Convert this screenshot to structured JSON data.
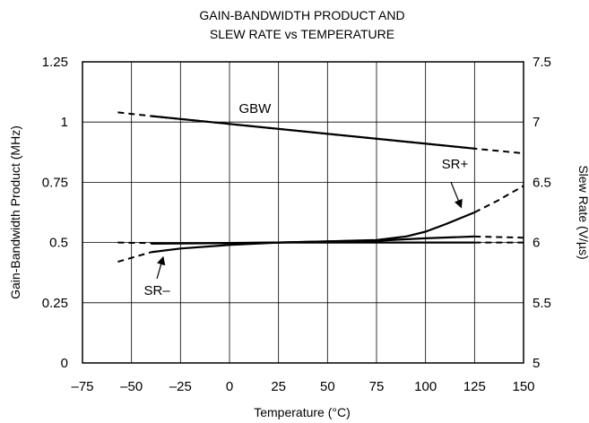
{
  "chart_data": {
    "type": "line",
    "title": "GAIN-BANDWIDTH PRODUCT AND",
    "subtitle": "SLEW RATE vs TEMPERATURE",
    "xlabel": "Temperature (°C)",
    "ylabel_left": "Gain-Bandwidth Product (MHz)",
    "ylabel_right": "Slew Rate (V/µs)",
    "xlim": [
      -75,
      150
    ],
    "ylim_left": [
      0,
      1.25
    ],
    "ylim_right": [
      5,
      7.5
    ],
    "x_ticks": [
      "–75",
      "–50",
      "–25",
      "0",
      "25",
      "50",
      "75",
      "100",
      "125",
      "150"
    ],
    "y_ticks_left": [
      "0",
      "0.25",
      "0.5",
      "0.75",
      "1",
      "1.25"
    ],
    "y_ticks_right": [
      "5",
      "5.5",
      "6",
      "6.5",
      "7",
      "7.5"
    ],
    "grid": true,
    "series": [
      {
        "name": "GBW",
        "axis": "left",
        "solid": [
          [
            -40,
            1.025
          ],
          [
            125,
            0.89
          ]
        ],
        "dashed": [
          [
            -57,
            1.04
          ],
          [
            -40,
            1.025
          ],
          [
            125,
            0.89
          ],
          [
            150,
            0.87
          ]
        ]
      },
      {
        "name": "SR+",
        "axis": "right",
        "solid": [
          [
            -40,
            5.99
          ],
          [
            0,
            5.995
          ],
          [
            25,
            6.0
          ],
          [
            50,
            6.01
          ],
          [
            75,
            6.02
          ],
          [
            90,
            6.05
          ],
          [
            100,
            6.09
          ],
          [
            110,
            6.15
          ],
          [
            125,
            6.25
          ]
        ],
        "dashed": [
          [
            125,
            6.25
          ],
          [
            137,
            6.35
          ],
          [
            150,
            6.47
          ]
        ]
      },
      {
        "name": "SR–",
        "axis": "right",
        "solid": [
          [
            -40,
            5.92
          ],
          [
            -25,
            5.95
          ],
          [
            0,
            5.98
          ],
          [
            25,
            6.0
          ],
          [
            50,
            6.01
          ],
          [
            75,
            6.015
          ],
          [
            100,
            6.035
          ],
          [
            125,
            6.05
          ]
        ],
        "dashed_start": [
          [
            -57,
            5.84
          ],
          [
            -40,
            5.92
          ]
        ],
        "dashed_end": [
          [
            125,
            6.05
          ],
          [
            150,
            6.04
          ]
        ]
      },
      {
        "name": "",
        "axis": "right",
        "solid": [
          [
            -40,
            5.995
          ],
          [
            -15,
            5.995
          ],
          [
            25,
            6.0
          ],
          [
            75,
            6.0
          ],
          [
            125,
            6.0
          ]
        ],
        "dashed_start": [
          [
            -57,
            6.0
          ],
          [
            -40,
            5.995
          ]
        ],
        "dashed_end": [
          [
            125,
            6.0
          ],
          [
            150,
            6.0
          ]
        ]
      }
    ],
    "annotations": [
      {
        "text": "GBW",
        "x": 13,
        "y_left": 1.03
      },
      {
        "text": "SR+",
        "x": 115,
        "y_right": 6.6
      },
      {
        "text": "SR–",
        "x": -37,
        "y_right": 5.55
      }
    ],
    "arrows": [
      {
        "label": "SR+",
        "from": [
          113,
          6.5
        ],
        "to": [
          118,
          6.3
        ],
        "axis": "right"
      },
      {
        "label": "SR–",
        "from": [
          -37,
          5.7
        ],
        "to": [
          -34,
          5.87
        ],
        "axis": "right"
      }
    ]
  }
}
